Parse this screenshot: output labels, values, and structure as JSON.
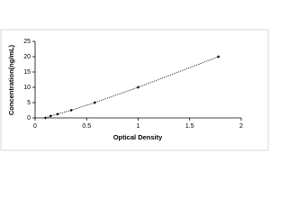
{
  "chart_data": {
    "type": "scatter",
    "x_label": "Optical Density",
    "y_label": "Concentration(ng/mL)",
    "xlim": [
      0,
      2
    ],
    "xticks": [
      0,
      0.5,
      1,
      1.5,
      2
    ],
    "ylim": [
      0,
      25
    ],
    "yticks": [
      0,
      5,
      10,
      15,
      20,
      25
    ],
    "series": [
      {
        "color": "#000000",
        "x": [
          0.1,
          0.15,
          0.22,
          0.35,
          0.58,
          1.0,
          1.78
        ],
        "values": [
          0,
          0.625,
          1.25,
          2.5,
          5,
          10,
          20
        ]
      }
    ]
  }
}
